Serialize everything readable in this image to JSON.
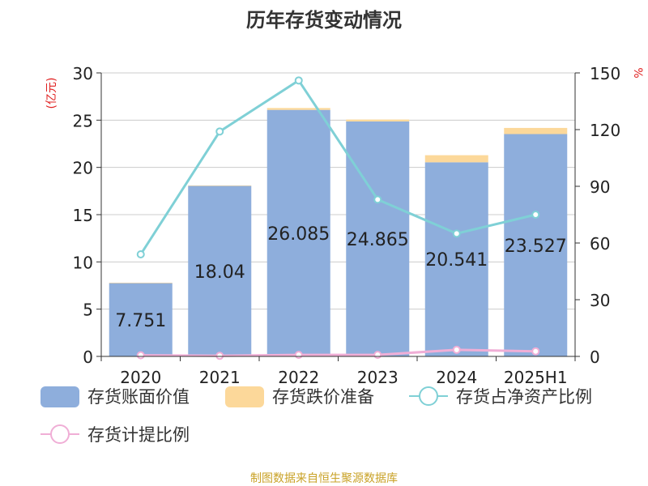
{
  "chart_data": {
    "type": "bar",
    "title": "历年存货变动情况",
    "categories": [
      "2020",
      "2021",
      "2022",
      "2023",
      "2024",
      "2025H1"
    ],
    "series": [
      {
        "name": "存货账面价值",
        "type": "bar",
        "axis": "left",
        "color": "#8eaedc",
        "values": [
          7.751,
          18.04,
          26.085,
          24.865,
          20.541,
          23.527
        ]
      },
      {
        "name": "存货跌价准备",
        "type": "bar",
        "axis": "left",
        "stacked": true,
        "color": "#fcd89a",
        "values": [
          0.05,
          0.05,
          0.2,
          0.2,
          0.75,
          0.65
        ]
      },
      {
        "name": "存货占净资产比例",
        "type": "line",
        "axis": "right",
        "color": "#7fd0d6",
        "values": [
          54,
          119,
          146,
          83,
          65,
          75
        ]
      },
      {
        "name": "存货计提比例",
        "type": "line",
        "axis": "right",
        "color": "#f0aed6",
        "values": [
          0.6,
          0.3,
          0.8,
          0.8,
          3.5,
          2.7
        ]
      }
    ],
    "bar_labels": [
      "7.751",
      "18.04",
      "26.085",
      "24.865",
      "20.541",
      "23.527"
    ],
    "y_left": {
      "label": "(亿元)",
      "ticks": [
        "0",
        "5",
        "10",
        "15",
        "20",
        "25",
        "30"
      ],
      "range": [
        0,
        30
      ]
    },
    "y_right": {
      "label": "%",
      "ticks": [
        "0",
        "30",
        "60",
        "90",
        "120",
        "150"
      ],
      "range": [
        0,
        150
      ]
    },
    "grid": true,
    "legend_position": "bottom",
    "source": "制图数据来自恒生聚源数据库"
  }
}
